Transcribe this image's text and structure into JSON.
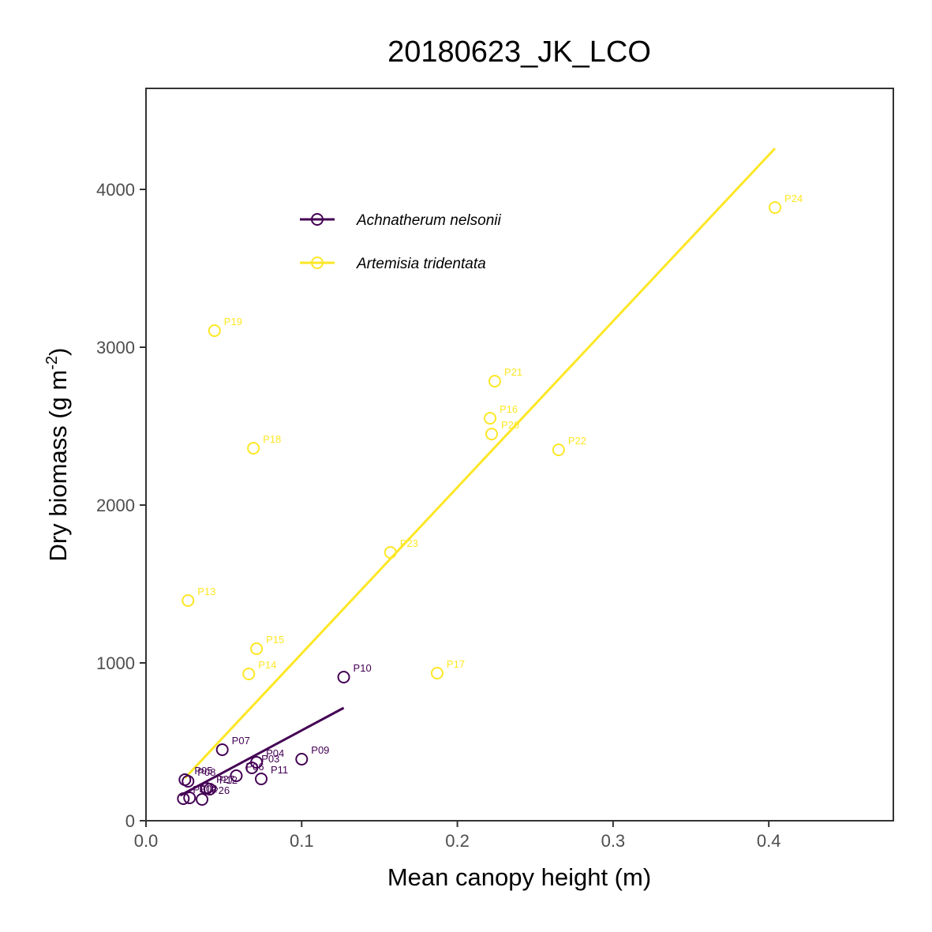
{
  "colors": {
    "Achnatherum nelsonii": "#440154",
    "Artemisia tridentata": "#fde725"
  },
  "chart_data": {
    "type": "scatter",
    "title": "20180623_JK_LCO",
    "xlabel": "Mean canopy height (m)",
    "ylabel_main": "Dry biomass (g m",
    "ylabel_exp": "-2",
    "ylabel_end": ")",
    "xlim": [
      0,
      0.48
    ],
    "ylim": [
      0,
      4640
    ],
    "xticks": [
      0.0,
      0.1,
      0.2,
      0.3,
      0.4
    ],
    "xtick_labels": [
      "0.0",
      "0.1",
      "0.2",
      "0.3",
      "0.4"
    ],
    "yticks": [
      0,
      1000,
      2000,
      3000,
      4000
    ],
    "ytick_labels": [
      "0",
      "1000",
      "2000",
      "3000",
      "4000"
    ],
    "grid": false,
    "legend_position": "top-left",
    "series": [
      {
        "name": "Achnatherum nelsonii",
        "points": [
          {
            "label": "P01",
            "x": 0.024,
            "y": 140
          },
          {
            "label": "P02",
            "x": 0.028,
            "y": 145
          },
          {
            "label": "P03",
            "x": 0.068,
            "y": 335
          },
          {
            "label": "P04",
            "x": 0.071,
            "y": 370
          },
          {
            "label": "P05",
            "x": 0.025,
            "y": 260
          },
          {
            "label": "P06",
            "x": 0.058,
            "y": 285
          },
          {
            "label": "P07",
            "x": 0.049,
            "y": 450
          },
          {
            "label": "P08",
            "x": 0.027,
            "y": 250
          },
          {
            "label": "P09",
            "x": 0.1,
            "y": 390
          },
          {
            "label": "P10",
            "x": 0.127,
            "y": 910
          },
          {
            "label": "P11",
            "x": 0.074,
            "y": 265
          },
          {
            "label": "P12",
            "x": 0.041,
            "y": 200
          },
          {
            "label": "P26",
            "x": 0.036,
            "y": 135
          },
          {
            "label": "P27",
            "x": 0.039,
            "y": 205
          }
        ],
        "fit": {
          "x": [
            0.022,
            0.127
          ],
          "y": [
            160,
            715
          ]
        }
      },
      {
        "name": "Artemisia tridentata",
        "points": [
          {
            "label": "P13",
            "x": 0.027,
            "y": 1395
          },
          {
            "label": "P14",
            "x": 0.066,
            "y": 930
          },
          {
            "label": "P15",
            "x": 0.071,
            "y": 1090
          },
          {
            "label": "P16",
            "x": 0.221,
            "y": 2550
          },
          {
            "label": "P17",
            "x": 0.187,
            "y": 935
          },
          {
            "label": "P18",
            "x": 0.069,
            "y": 2360
          },
          {
            "label": "P19",
            "x": 0.044,
            "y": 3105
          },
          {
            "label": "P20",
            "x": 0.222,
            "y": 2450
          },
          {
            "label": "P21",
            "x": 0.224,
            "y": 2785
          },
          {
            "label": "P22",
            "x": 0.265,
            "y": 2350
          },
          {
            "label": "P23",
            "x": 0.157,
            "y": 1700
          },
          {
            "label": "P24",
            "x": 0.404,
            "y": 3885
          }
        ],
        "fit": {
          "x": [
            0.025,
            0.404
          ],
          "y": [
            270,
            4260
          ]
        }
      }
    ]
  }
}
